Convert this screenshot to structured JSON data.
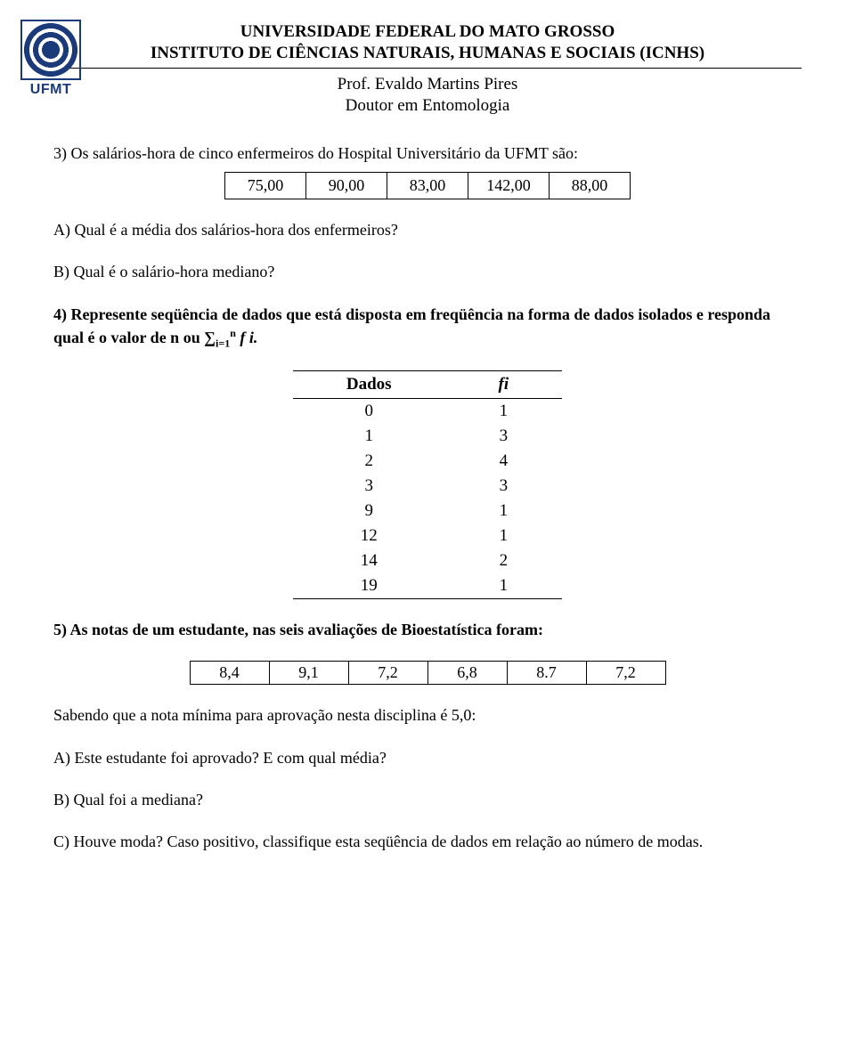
{
  "header": {
    "line1": "UNIVERSIDADE FEDERAL DO MATO GROSSO",
    "line2": "INSTITUTO DE CIÊNCIAS NATURAIS, HUMANAS E SOCIAIS (ICNHS)",
    "prof": "Prof. Evaldo Martins Pires",
    "degree": "Doutor em Entomologia",
    "logo_text": "UFMT",
    "logo_color": "#1a3a7a"
  },
  "q3": {
    "text": "3) Os salários-hora de cinco enfermeiros do Hospital Universitário da UFMT são:",
    "values": [
      "75,00",
      "90,00",
      "83,00",
      "142,00",
      "88,00"
    ],
    "a": "A) Qual é a média dos salários-hora dos enfermeiros?",
    "b": "B) Qual é o salário-hora mediano?"
  },
  "q4": {
    "text_pre": "4) Represente seqüência de dados que está disposta em freqüência na forma de dados isolados e responda qual é o valor de n ou ",
    "sum_disp": "∑",
    "sum_sub": "i=1",
    "sum_sup": "n",
    "sum_after": " f i.",
    "col1": "Dados",
    "col2": "fi",
    "rows": [
      {
        "d": "0",
        "f": "1"
      },
      {
        "d": "1",
        "f": "3"
      },
      {
        "d": "2",
        "f": "4"
      },
      {
        "d": "3",
        "f": "3"
      },
      {
        "d": "9",
        "f": "1"
      },
      {
        "d": "12",
        "f": "1"
      },
      {
        "d": "14",
        "f": "2"
      },
      {
        "d": "19",
        "f": "1"
      }
    ]
  },
  "q5": {
    "text": "5) As notas de um estudante, nas seis avaliações de Bioestatística foram:",
    "values": [
      "8,4",
      "9,1",
      "7,2",
      "6,8",
      "8.7",
      "7,2"
    ],
    "line1": "Sabendo que a nota mínima para aprovação nesta disciplina é 5,0:",
    "a": "A) Este estudante foi aprovado? E com qual média?",
    "b": "B) Qual foi a mediana?",
    "c": "C) Houve moda? Caso positivo, classifique esta seqüência de dados em relação ao número de modas."
  }
}
